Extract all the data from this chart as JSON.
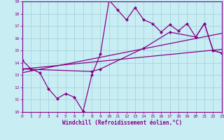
{
  "xlabel": "Windchill (Refroidissement éolien,°C)",
  "xlim": [
    0,
    23
  ],
  "ylim": [
    10,
    19
  ],
  "xticks": [
    0,
    1,
    2,
    3,
    4,
    5,
    6,
    7,
    8,
    9,
    10,
    11,
    12,
    13,
    14,
    15,
    16,
    17,
    18,
    19,
    20,
    21,
    22,
    23
  ],
  "yticks": [
    10,
    11,
    12,
    13,
    14,
    15,
    16,
    17,
    18,
    19
  ],
  "bg_color": "#c8eef4",
  "line_color": "#880088",
  "grid_color": "#a0ccd8",
  "curve1_x": [
    0,
    1,
    2,
    3,
    4,
    5,
    6,
    7,
    8,
    9,
    10,
    11,
    12,
    13,
    14,
    15,
    16,
    17,
    18,
    19,
    20,
    21,
    22,
    23
  ],
  "curve1_y": [
    14.2,
    13.5,
    13.2,
    11.9,
    11.1,
    11.5,
    11.2,
    10.05,
    13.0,
    14.7,
    19.1,
    18.3,
    17.5,
    18.5,
    17.5,
    17.2,
    16.5,
    17.1,
    16.6,
    17.2,
    16.1,
    17.2,
    15.0,
    14.8
  ],
  "curve2_x": [
    0,
    8,
    9,
    14,
    17,
    20,
    21,
    22,
    23
  ],
  "curve2_y": [
    13.5,
    13.3,
    13.5,
    15.2,
    16.5,
    16.1,
    17.2,
    15.0,
    14.8
  ],
  "line1_x": [
    0,
    23
  ],
  "line1_y": [
    13.2,
    16.4
  ],
  "line2_x": [
    0,
    23
  ],
  "line2_y": [
    13.5,
    15.1
  ]
}
